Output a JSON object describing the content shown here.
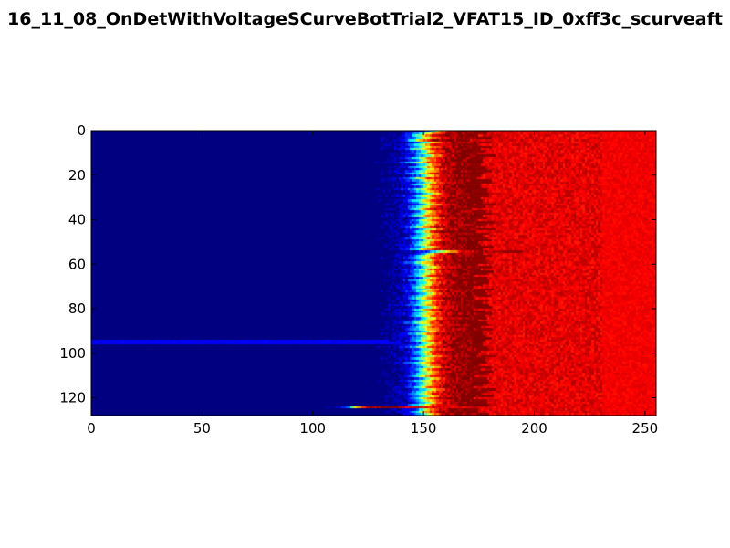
{
  "chart_data": {
    "type": "heatmap",
    "title": "16_11_08_OnDetWithVoltageSCurveBotTrial2_VFAT15_ID_0xff3c_scurveaft",
    "xlabel": "",
    "ylabel": "",
    "xlim": [
      0,
      255
    ],
    "ylim": [
      128,
      0
    ],
    "xticks": [
      0,
      50,
      100,
      150,
      200,
      250
    ],
    "yticks": [
      0,
      20,
      40,
      60,
      80,
      100,
      120
    ],
    "rows": 128,
    "cols": 255,
    "colormap": "jet",
    "value_range": [
      0,
      1
    ],
    "transition_center_by_row": [
      155,
      150,
      148,
      150,
      146,
      152,
      148,
      150,
      147,
      151,
      149,
      152,
      148,
      150,
      146,
      151,
      149,
      152,
      150,
      148,
      151,
      147,
      150,
      152,
      149,
      151,
      148,
      150,
      153,
      149,
      151,
      148,
      150,
      152,
      149,
      147,
      151,
      150,
      148,
      152,
      149,
      151,
      150,
      147,
      152,
      149,
      151,
      150,
      148,
      152,
      150,
      149,
      151,
      148,
      158,
      152,
      150,
      149,
      151,
      148,
      150,
      152,
      149,
      151,
      150,
      148,
      152,
      149,
      151,
      150,
      148,
      151,
      149,
      152,
      150,
      148,
      151,
      150,
      149,
      152,
      148,
      151,
      150,
      149,
      152,
      150,
      148,
      151,
      149,
      150,
      152,
      148,
      151,
      150,
      149,
      152,
      150,
      148,
      151,
      149,
      150,
      152,
      149,
      151,
      148,
      150,
      152,
      149,
      151,
      150,
      148,
      152,
      149,
      151,
      150,
      148,
      152,
      150,
      149,
      151,
      148,
      150,
      152,
      149,
      118,
      150,
      148,
      151
    ],
    "transition_width_by_row": [
      12,
      14,
      13,
      15,
      12,
      14,
      13,
      15,
      14,
      13,
      12,
      15,
      14,
      13,
      15,
      12,
      14,
      13,
      15,
      14,
      12,
      13,
      15,
      14,
      13,
      12,
      15,
      14,
      13,
      15,
      12,
      14,
      13,
      15,
      14,
      12,
      13,
      15,
      14,
      13,
      12,
      15,
      14,
      13,
      15,
      12,
      14,
      13,
      15,
      14,
      12,
      13,
      15,
      14,
      18,
      12,
      15,
      14,
      13,
      15,
      12,
      14,
      13,
      15,
      14,
      12,
      13,
      15,
      14,
      13,
      12,
      15,
      14,
      13,
      15,
      12,
      14,
      13,
      15,
      14,
      12,
      13,
      15,
      14,
      13,
      12,
      15,
      14,
      13,
      15,
      12,
      14,
      13,
      15,
      14,
      12,
      13,
      15,
      14,
      13,
      12,
      15,
      14,
      13,
      15,
      12,
      14,
      13,
      15,
      14,
      12,
      13,
      15,
      14,
      13,
      12,
      15,
      14,
      13,
      15,
      12,
      14,
      13,
      15,
      10,
      12,
      13,
      14
    ],
    "noise_rows": [
      94,
      95
    ],
    "grid": false,
    "legend": "none"
  }
}
